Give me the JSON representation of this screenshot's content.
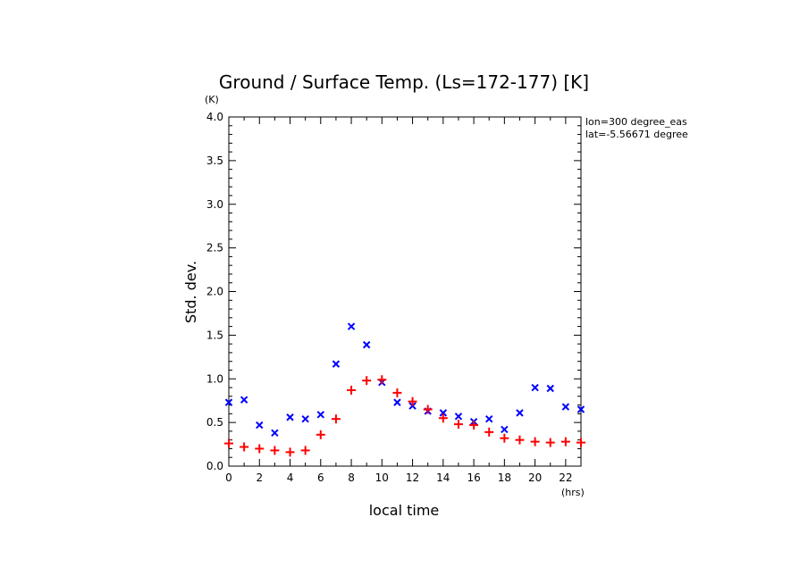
{
  "chart_data": {
    "type": "scatter",
    "title": "Ground / Surface Temp. (Ls=172-177) [K]",
    "xlabel": "local time",
    "ylabel": "Std. dev.",
    "x_unit": "(hrs)",
    "y_unit": "(K)",
    "xlim": [
      0,
      23
    ],
    "ylim": [
      0,
      4
    ],
    "x_ticks": [
      "0",
      "2",
      "4",
      "6",
      "8",
      "10",
      "12",
      "14",
      "16",
      "18",
      "20",
      "22"
    ],
    "y_ticks": [
      "0.0",
      "0.5",
      "1.0",
      "1.5",
      "2.0",
      "2.5",
      "3.0",
      "3.5",
      "4.0"
    ],
    "annotations": [
      "lon=300 degree_eas",
      "lat=-5.56671 degree"
    ],
    "grid": false,
    "series": [
      {
        "marker": "x",
        "color": "#0000ff",
        "x": [
          0,
          1,
          2,
          3,
          4,
          5,
          6,
          7,
          8,
          9,
          10,
          11,
          12,
          13,
          14,
          15,
          16,
          17,
          18,
          19,
          20,
          21,
          22,
          23
        ],
        "y": [
          0.73,
          0.76,
          0.47,
          0.38,
          0.56,
          0.54,
          0.59,
          1.17,
          1.6,
          1.39,
          0.96,
          0.73,
          0.69,
          0.63,
          0.61,
          0.57,
          0.51,
          0.54,
          0.42,
          0.61,
          0.9,
          0.89,
          0.68,
          0.65
        ]
      },
      {
        "marker": "+",
        "color": "#ff0000",
        "x": [
          0,
          1,
          2,
          3,
          4,
          5,
          6,
          7,
          8,
          9,
          10,
          11,
          12,
          13,
          14,
          15,
          16,
          17,
          18,
          19,
          20,
          21,
          22,
          23
        ],
        "y": [
          0.26,
          0.22,
          0.2,
          0.18,
          0.16,
          0.18,
          0.36,
          0.54,
          0.87,
          0.98,
          0.99,
          0.84,
          0.74,
          0.65,
          0.55,
          0.48,
          0.47,
          0.39,
          0.32,
          0.3,
          0.28,
          0.27,
          0.28,
          0.27
        ]
      }
    ]
  }
}
